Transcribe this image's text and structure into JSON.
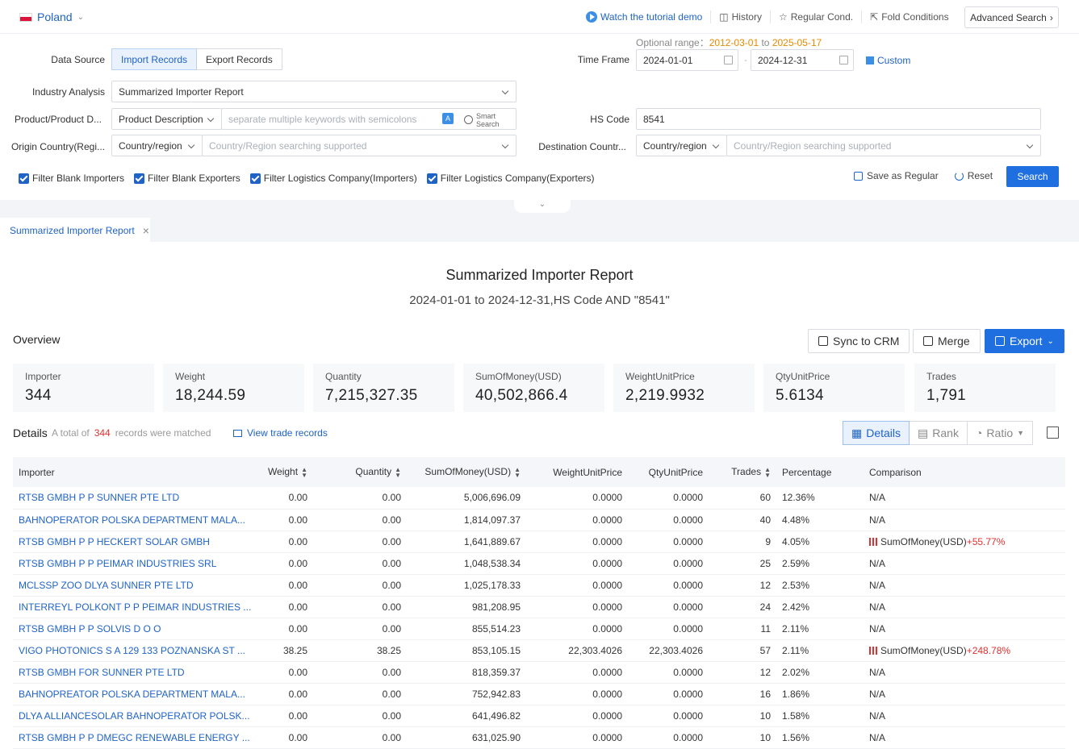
{
  "header": {
    "country": "Poland",
    "links": {
      "tutorial": "Watch the tutorial demo",
      "history": "History",
      "regular": "Regular Cond.",
      "fold": "Fold Conditions"
    },
    "advanced": "Advanced Search"
  },
  "filters": {
    "data_source_label": "Data Source",
    "data_source_options": [
      "Import Records",
      "Export Records"
    ],
    "industry_label": "Industry Analysis",
    "industry_value": "Summarized Importer Report",
    "product_label": "Product/Product D...",
    "product_type": "Product Description",
    "product_placeholder": "separate multiple keywords with semicolons",
    "smart_search": [
      "Smart",
      "Search"
    ],
    "origin_label": "Origin Country(Regi...",
    "origin_type": "Country/region",
    "origin_placeholder": "Country/Region searching supported",
    "optional_prefix": "Optional range：",
    "optional_from": "2012-03-01",
    "optional_to_word": "to",
    "optional_to": "2025-05-17",
    "timeframe_label": "Time Frame",
    "date_from": "2024-01-01",
    "date_to": "2024-12-31",
    "custom": "Custom",
    "hs_label": "HS Code",
    "hs_value": "8541",
    "dest_label": "Destination Countr...",
    "dest_type": "Country/region",
    "dest_placeholder": "Country/Region searching supported",
    "checkboxes": [
      "Filter Blank Importers",
      "Filter Blank Exporters",
      "Filter Logistics Company(Importers)",
      "Filter Logistics Company(Exporters)"
    ],
    "save_regular": "Save as Regular",
    "reset": "Reset",
    "search": "Search"
  },
  "tab": {
    "label": "Summarized Importer Report"
  },
  "report": {
    "title": "Summarized Importer Report",
    "subtitle": "2024-01-01 to 2024-12-31,HS Code AND \"8541\"",
    "overview_label": "Overview",
    "buttons": {
      "sync": "Sync to CRM",
      "merge": "Merge",
      "export": "Export"
    },
    "stats": [
      {
        "label": "Importer",
        "value": "344"
      },
      {
        "label": "Weight",
        "value": "18,244.59"
      },
      {
        "label": "Quantity",
        "value": "7,215,327.35"
      },
      {
        "label": "SumOfMoney(USD)",
        "value": "40,502,866.4"
      },
      {
        "label": "WeightUnitPrice",
        "value": "2,219.9932"
      },
      {
        "label": "QtyUnitPrice",
        "value": "5.6134"
      },
      {
        "label": "Trades",
        "value": "1,791"
      }
    ],
    "details_label": "Details",
    "total_prefix": "A total of",
    "total_count": "344",
    "total_suffix": "records were matched",
    "view_trade": "View trade records",
    "views": [
      "Details",
      "Rank",
      "Ratio"
    ]
  },
  "table": {
    "headers": [
      "Importer",
      "Weight",
      "Quantity",
      "SumOfMoney(USD)",
      "WeightUnitPrice",
      "QtyUnitPrice",
      "Trades",
      "Percentage",
      "Comparison"
    ],
    "rows": [
      [
        "RTSB GMBH P P SUNNER PTE LTD",
        "0.00",
        "0.00",
        "5,006,696.09",
        "0.0000",
        "0.0000",
        "60",
        "12.36%",
        "N/A"
      ],
      [
        "BAHNOPERATOR POLSKA DEPARTMENT MALA...",
        "0.00",
        "0.00",
        "1,814,097.37",
        "0.0000",
        "0.0000",
        "40",
        "4.48%",
        "N/A"
      ],
      [
        "RTSB GMBH P P HECKERT SOLAR GMBH",
        "0.00",
        "0.00",
        "1,641,889.67",
        "0.0000",
        "0.0000",
        "9",
        "4.05%",
        "SumOfMoney(USD)|+55.77%"
      ],
      [
        "RTSB GMBH P P PEIMAR INDUSTRIES SRL",
        "0.00",
        "0.00",
        "1,048,538.34",
        "0.0000",
        "0.0000",
        "25",
        "2.59%",
        "N/A"
      ],
      [
        "MCLSSP ZOO DLYA SUNNER PTE LTD",
        "0.00",
        "0.00",
        "1,025,178.33",
        "0.0000",
        "0.0000",
        "12",
        "2.53%",
        "N/A"
      ],
      [
        "INTERREYL POLKONT P P PEIMAR INDUSTRIES ...",
        "0.00",
        "0.00",
        "981,208.95",
        "0.0000",
        "0.0000",
        "24",
        "2.42%",
        "N/A"
      ],
      [
        "RTSB GMBH P P SOLVIS D O O",
        "0.00",
        "0.00",
        "855,514.23",
        "0.0000",
        "0.0000",
        "11",
        "2.11%",
        "N/A"
      ],
      [
        "VIGO PHOTONICS S A 129 133 POZNANSKA ST ...",
        "38.25",
        "38.25",
        "853,105.15",
        "22,303.4026",
        "22,303.4026",
        "57",
        "2.11%",
        "SumOfMoney(USD)|+248.78%"
      ],
      [
        "RTSB GMBH FOR SUNNER PTE LTD",
        "0.00",
        "0.00",
        "818,359.37",
        "0.0000",
        "0.0000",
        "12",
        "2.02%",
        "N/A"
      ],
      [
        "BAHNOPREATOR POLSKA DEPARTMENT MALA...",
        "0.00",
        "0.00",
        "752,942.83",
        "0.0000",
        "0.0000",
        "16",
        "1.86%",
        "N/A"
      ],
      [
        "DLYA ALLIANCESOLAR BAHNOPERATOR POLSK...",
        "0.00",
        "0.00",
        "641,496.82",
        "0.0000",
        "0.0000",
        "10",
        "1.58%",
        "N/A"
      ],
      [
        "RTSB GMBH P P DMEGC RENEWABLE ENERGY ...",
        "0.00",
        "0.00",
        "631,025.90",
        "0.0000",
        "0.0000",
        "10",
        "1.56%",
        "N/A"
      ]
    ]
  },
  "colors": {
    "accent": "#1f6fe0",
    "link": "#1f63c6",
    "increase": "#e03030",
    "optional_range": "#e68a00"
  }
}
